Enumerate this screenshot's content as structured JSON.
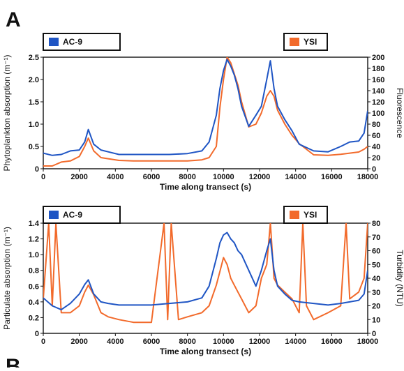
{
  "panel_labels": {
    "top": "A",
    "bottom": "B"
  },
  "chart_data": [
    {
      "type": "line",
      "xlabel": "Time along transect (s)",
      "ylabel_left": "Phytoplankton absorption (m⁻¹)",
      "ylabel_right": "Fluorescence",
      "xlim": [
        0,
        18000
      ],
      "ylim_left": [
        0,
        2.5
      ],
      "ylim_right": [
        0,
        200
      ],
      "x_ticks": [
        "0",
        "2000",
        "4000",
        "6000",
        "8000",
        "10000",
        "12000",
        "14000",
        "16000",
        "18000"
      ],
      "y_ticks_left": [
        "0",
        "0.5",
        "1.0",
        "1.5",
        "2.0",
        "2.5"
      ],
      "y_ticks_right": [
        "0",
        "20",
        "40",
        "60",
        "80",
        "100",
        "120",
        "140",
        "160",
        "180",
        "200"
      ],
      "legend": [
        {
          "label": "AC-9",
          "color": "#1f55c4",
          "position": "top-left"
        },
        {
          "label": "YSI",
          "color": "#f26a2b",
          "position": "top-right"
        }
      ],
      "series": [
        {
          "name": "AC-9",
          "axis": "left",
          "color": "#1f55c4",
          "x": [
            0,
            500,
            1000,
            1500,
            2000,
            2300,
            2500,
            2800,
            3200,
            3600,
            4200,
            5000,
            6000,
            7000,
            8000,
            8800,
            9200,
            9600,
            9800,
            10000,
            10200,
            10400,
            10600,
            10800,
            11000,
            11400,
            11800,
            12100,
            12400,
            12600,
            12800,
            13000,
            13400,
            13800,
            14200,
            15000,
            15800,
            16500,
            17000,
            17500,
            17800,
            18000
          ],
          "y": [
            0.35,
            0.3,
            0.32,
            0.4,
            0.42,
            0.6,
            0.88,
            0.55,
            0.42,
            0.38,
            0.32,
            0.32,
            0.32,
            0.32,
            0.34,
            0.4,
            0.6,
            1.2,
            1.8,
            2.2,
            2.45,
            2.3,
            2.1,
            1.8,
            1.4,
            0.95,
            1.2,
            1.4,
            2.0,
            2.42,
            1.8,
            1.4,
            1.1,
            0.85,
            0.55,
            0.4,
            0.38,
            0.5,
            0.6,
            0.62,
            0.8,
            1.3
          ]
        },
        {
          "name": "YSI",
          "axis": "right",
          "color": "#f26a2b",
          "x": [
            0,
            500,
            1000,
            1500,
            2000,
            2300,
            2500,
            2800,
            3200,
            3600,
            4200,
            5000,
            6000,
            7000,
            8000,
            8800,
            9200,
            9600,
            9800,
            10000,
            10200,
            10400,
            10600,
            10800,
            11000,
            11400,
            11800,
            12100,
            12400,
            12600,
            12800,
            13000,
            13400,
            13800,
            14200,
            15000,
            15800,
            16500,
            17000,
            17500,
            17800,
            18000
          ],
          "y": [
            5,
            5,
            12,
            14,
            22,
            40,
            55,
            32,
            20,
            18,
            15,
            14,
            14,
            14,
            14,
            16,
            20,
            40,
            110,
            160,
            200,
            190,
            170,
            150,
            120,
            75,
            80,
            100,
            130,
            140,
            130,
            105,
            80,
            60,
            45,
            25,
            24,
            26,
            28,
            30,
            35,
            40
          ]
        }
      ]
    },
    {
      "type": "line",
      "xlabel": "Time along transect (s)",
      "ylabel_left": "Particulate absorption (m⁻¹)",
      "ylabel_right": "Turbidity (NTU)",
      "xlim": [
        0,
        18000
      ],
      "ylim_left": [
        0,
        1.4
      ],
      "ylim_right": [
        0,
        80
      ],
      "x_ticks": [
        "0",
        "2000",
        "4000",
        "6000",
        "8000",
        "10000",
        "12000",
        "14000",
        "16000",
        "18000"
      ],
      "y_ticks_left": [
        "0",
        "0.2",
        "0.4",
        "0.6",
        "0.8",
        "1.0",
        "1.2",
        "1.4"
      ],
      "y_ticks_right": [
        "0",
        "10",
        "20",
        "30",
        "40",
        "50",
        "60",
        "70",
        "80"
      ],
      "legend": [
        {
          "label": "AC-9",
          "color": "#1f55c4",
          "position": "top-left"
        },
        {
          "label": "YSI",
          "color": "#f26a2b",
          "position": "top-right"
        }
      ],
      "series": [
        {
          "name": "AC-9",
          "axis": "left",
          "color": "#1f55c4",
          "x": [
            0,
            500,
            1000,
            1500,
            2000,
            2300,
            2500,
            2800,
            3200,
            3600,
            4200,
            5000,
            6000,
            7000,
            8000,
            8800,
            9200,
            9600,
            9800,
            10000,
            10200,
            10400,
            10600,
            10800,
            11000,
            11400,
            11800,
            12100,
            12400,
            12600,
            12800,
            13000,
            13400,
            13800,
            14200,
            15000,
            15800,
            16500,
            17000,
            17500,
            17800,
            18000
          ],
          "y": [
            0.45,
            0.35,
            0.3,
            0.38,
            0.5,
            0.62,
            0.68,
            0.5,
            0.4,
            0.38,
            0.36,
            0.36,
            0.36,
            0.38,
            0.4,
            0.45,
            0.6,
            0.95,
            1.15,
            1.25,
            1.28,
            1.2,
            1.15,
            1.05,
            1.0,
            0.8,
            0.6,
            0.8,
            1.05,
            1.2,
            0.8,
            0.6,
            0.5,
            0.42,
            0.4,
            0.38,
            0.36,
            0.38,
            0.4,
            0.42,
            0.5,
            0.8
          ]
        },
        {
          "name": "YSI",
          "axis": "right",
          "color": "#f26a2b",
          "x": [
            0,
            300,
            500,
            700,
            1000,
            1500,
            2000,
            2300,
            2500,
            2800,
            3200,
            3600,
            4200,
            5000,
            6000,
            6700,
            6900,
            7100,
            7500,
            8000,
            8800,
            9200,
            9600,
            9800,
            10000,
            10200,
            10400,
            10600,
            10800,
            11000,
            11400,
            11800,
            12100,
            12400,
            12600,
            12800,
            13000,
            13400,
            13800,
            14200,
            14400,
            14600,
            15000,
            15800,
            16500,
            16800,
            17000,
            17500,
            17800,
            18000
          ],
          "y": [
            25,
            80,
            20,
            80,
            15,
            15,
            20,
            30,
            35,
            28,
            15,
            12,
            10,
            8,
            8,
            80,
            10,
            80,
            10,
            12,
            15,
            20,
            35,
            45,
            55,
            50,
            40,
            35,
            30,
            25,
            15,
            20,
            40,
            50,
            80,
            40,
            35,
            30,
            25,
            15,
            80,
            20,
            10,
            15,
            20,
            80,
            25,
            30,
            40,
            80
          ]
        }
      ]
    }
  ]
}
